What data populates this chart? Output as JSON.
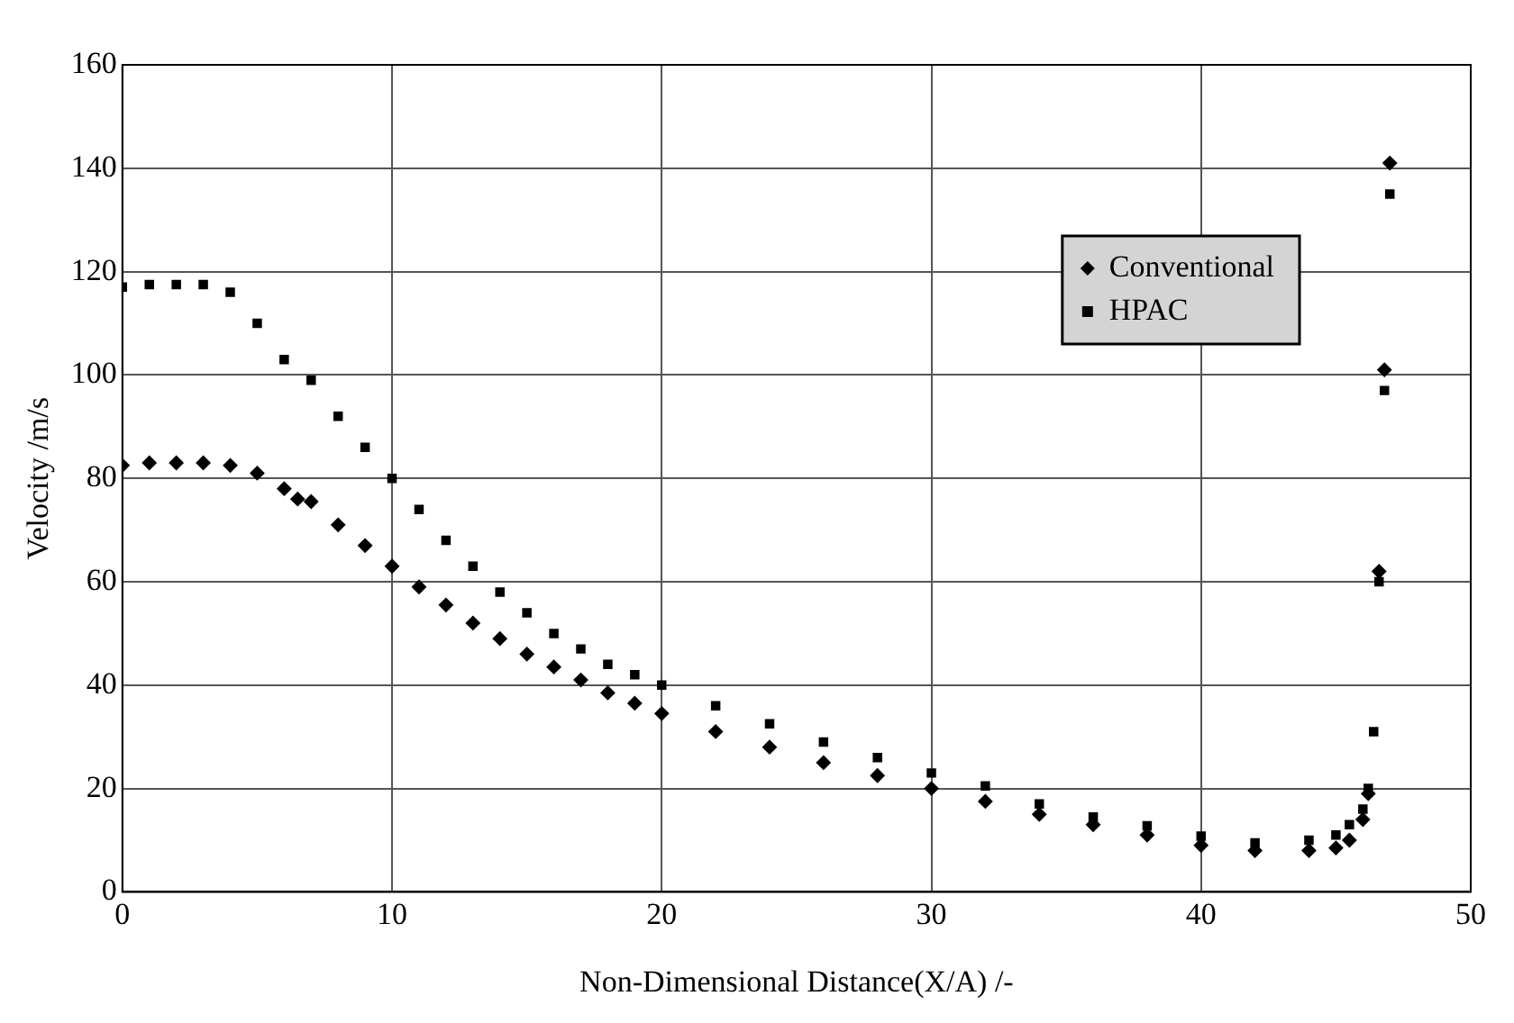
{
  "chart_data": {
    "type": "scatter",
    "xlabel": "Non-Dimensional Distance(X/A) /-",
    "ylabel": "Velocity /m/s",
    "xlim": [
      0,
      50
    ],
    "xticks": [
      0,
      10,
      20,
      30,
      40,
      50
    ],
    "ylim": [
      0,
      160
    ],
    "yticks": [
      0,
      20,
      40,
      60,
      80,
      100,
      120,
      140,
      160
    ],
    "grid": true,
    "legend": "top right",
    "series": [
      {
        "name": "Conventional",
        "color": "#000000",
        "marker": "diamond",
        "x": [
          0,
          1,
          2,
          3,
          4,
          5,
          6,
          6.5,
          7,
          8,
          9,
          10,
          11,
          12,
          13,
          14,
          15,
          16,
          17,
          18,
          19,
          20,
          22,
          24,
          26,
          28,
          30,
          32,
          34,
          36,
          38,
          40,
          42,
          44,
          45,
          45.5,
          46,
          46.2,
          46.4,
          46.6,
          46.8,
          47
        ],
        "values": [
          82.5,
          83,
          83,
          83,
          82.5,
          81,
          78,
          76,
          75.5,
          71,
          67,
          63,
          59,
          55.5,
          52,
          49,
          46,
          43.5,
          41,
          38.5,
          36.5,
          34.5,
          31,
          28,
          25,
          22.5,
          20,
          17.5,
          15,
          13,
          11,
          9,
          8,
          8,
          8.5,
          10,
          14,
          19,
          null,
          62,
          101,
          141
        ]
      },
      {
        "name": "HPAC",
        "color": "#000000",
        "marker": "square",
        "x": [
          0,
          1,
          2,
          3,
          4,
          5,
          6,
          7,
          8,
          9,
          10,
          11,
          12,
          13,
          14,
          15,
          16,
          17,
          18,
          19,
          20,
          22,
          24,
          26,
          28,
          30,
          32,
          34,
          36,
          38,
          40,
          42,
          44,
          45,
          45.5,
          46,
          46.2,
          46.4,
          46.6,
          46.8,
          47
        ],
        "values": [
          117,
          117.5,
          117.5,
          117.5,
          116,
          110,
          103,
          99,
          92,
          86,
          80,
          74,
          68,
          63,
          58,
          54,
          50,
          47,
          44,
          42,
          40,
          36,
          32.5,
          29,
          26,
          23,
          20.5,
          17,
          14.5,
          12.8,
          10.8,
          9.5,
          10,
          11,
          13,
          16,
          20,
          31,
          60,
          97,
          135
        ]
      }
    ]
  }
}
